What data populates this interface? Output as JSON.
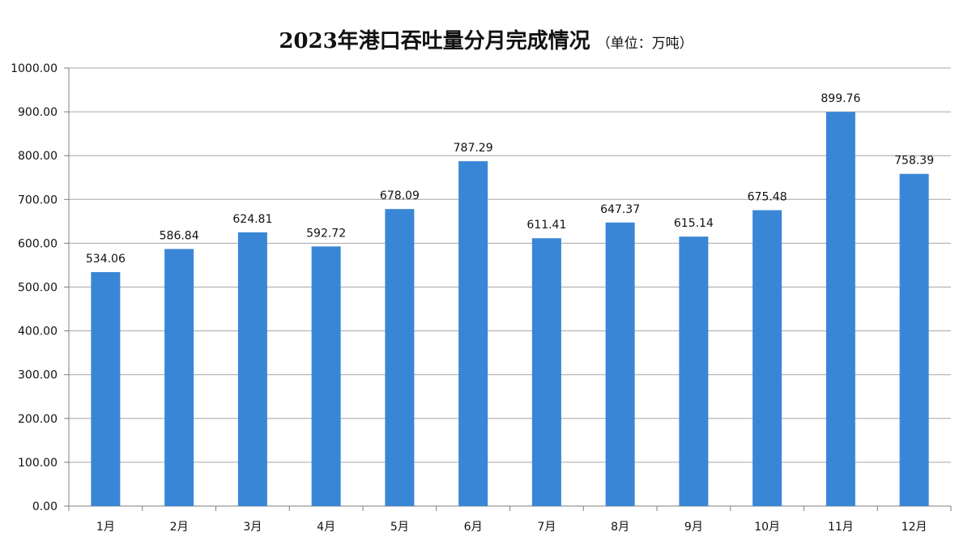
{
  "chart_data": {
    "type": "bar",
    "title": "2023年港口吞吐量分月完成情况",
    "subtitle": "（单位：万吨）",
    "categories": [
      "1月",
      "2月",
      "3月",
      "4月",
      "5月",
      "6月",
      "7月",
      "8月",
      "9月",
      "10月",
      "11月",
      "12月"
    ],
    "values": [
      534.06,
      586.84,
      624.81,
      592.72,
      678.09,
      787.29,
      611.41,
      647.37,
      615.14,
      675.48,
      899.76,
      758.39
    ],
    "value_labels": [
      "534.06",
      "586.84",
      "624.81",
      "592.72",
      "678.09",
      "787.29",
      "611.41",
      "647.37",
      "615.14",
      "675.48",
      "899.76",
      "758.39"
    ],
    "yticks": [
      "0.00",
      "100.00",
      "200.00",
      "300.00",
      "400.00",
      "500.00",
      "600.00",
      "700.00",
      "800.00",
      "900.00",
      "1000.00"
    ],
    "ylim": [
      0,
      1000
    ],
    "xlabel": "",
    "ylabel": "",
    "grid": true,
    "legend": "none",
    "colors": {
      "bar": "#3a86d6",
      "grid": "#a6a6a6",
      "axis": "#7f7f7f"
    }
  }
}
